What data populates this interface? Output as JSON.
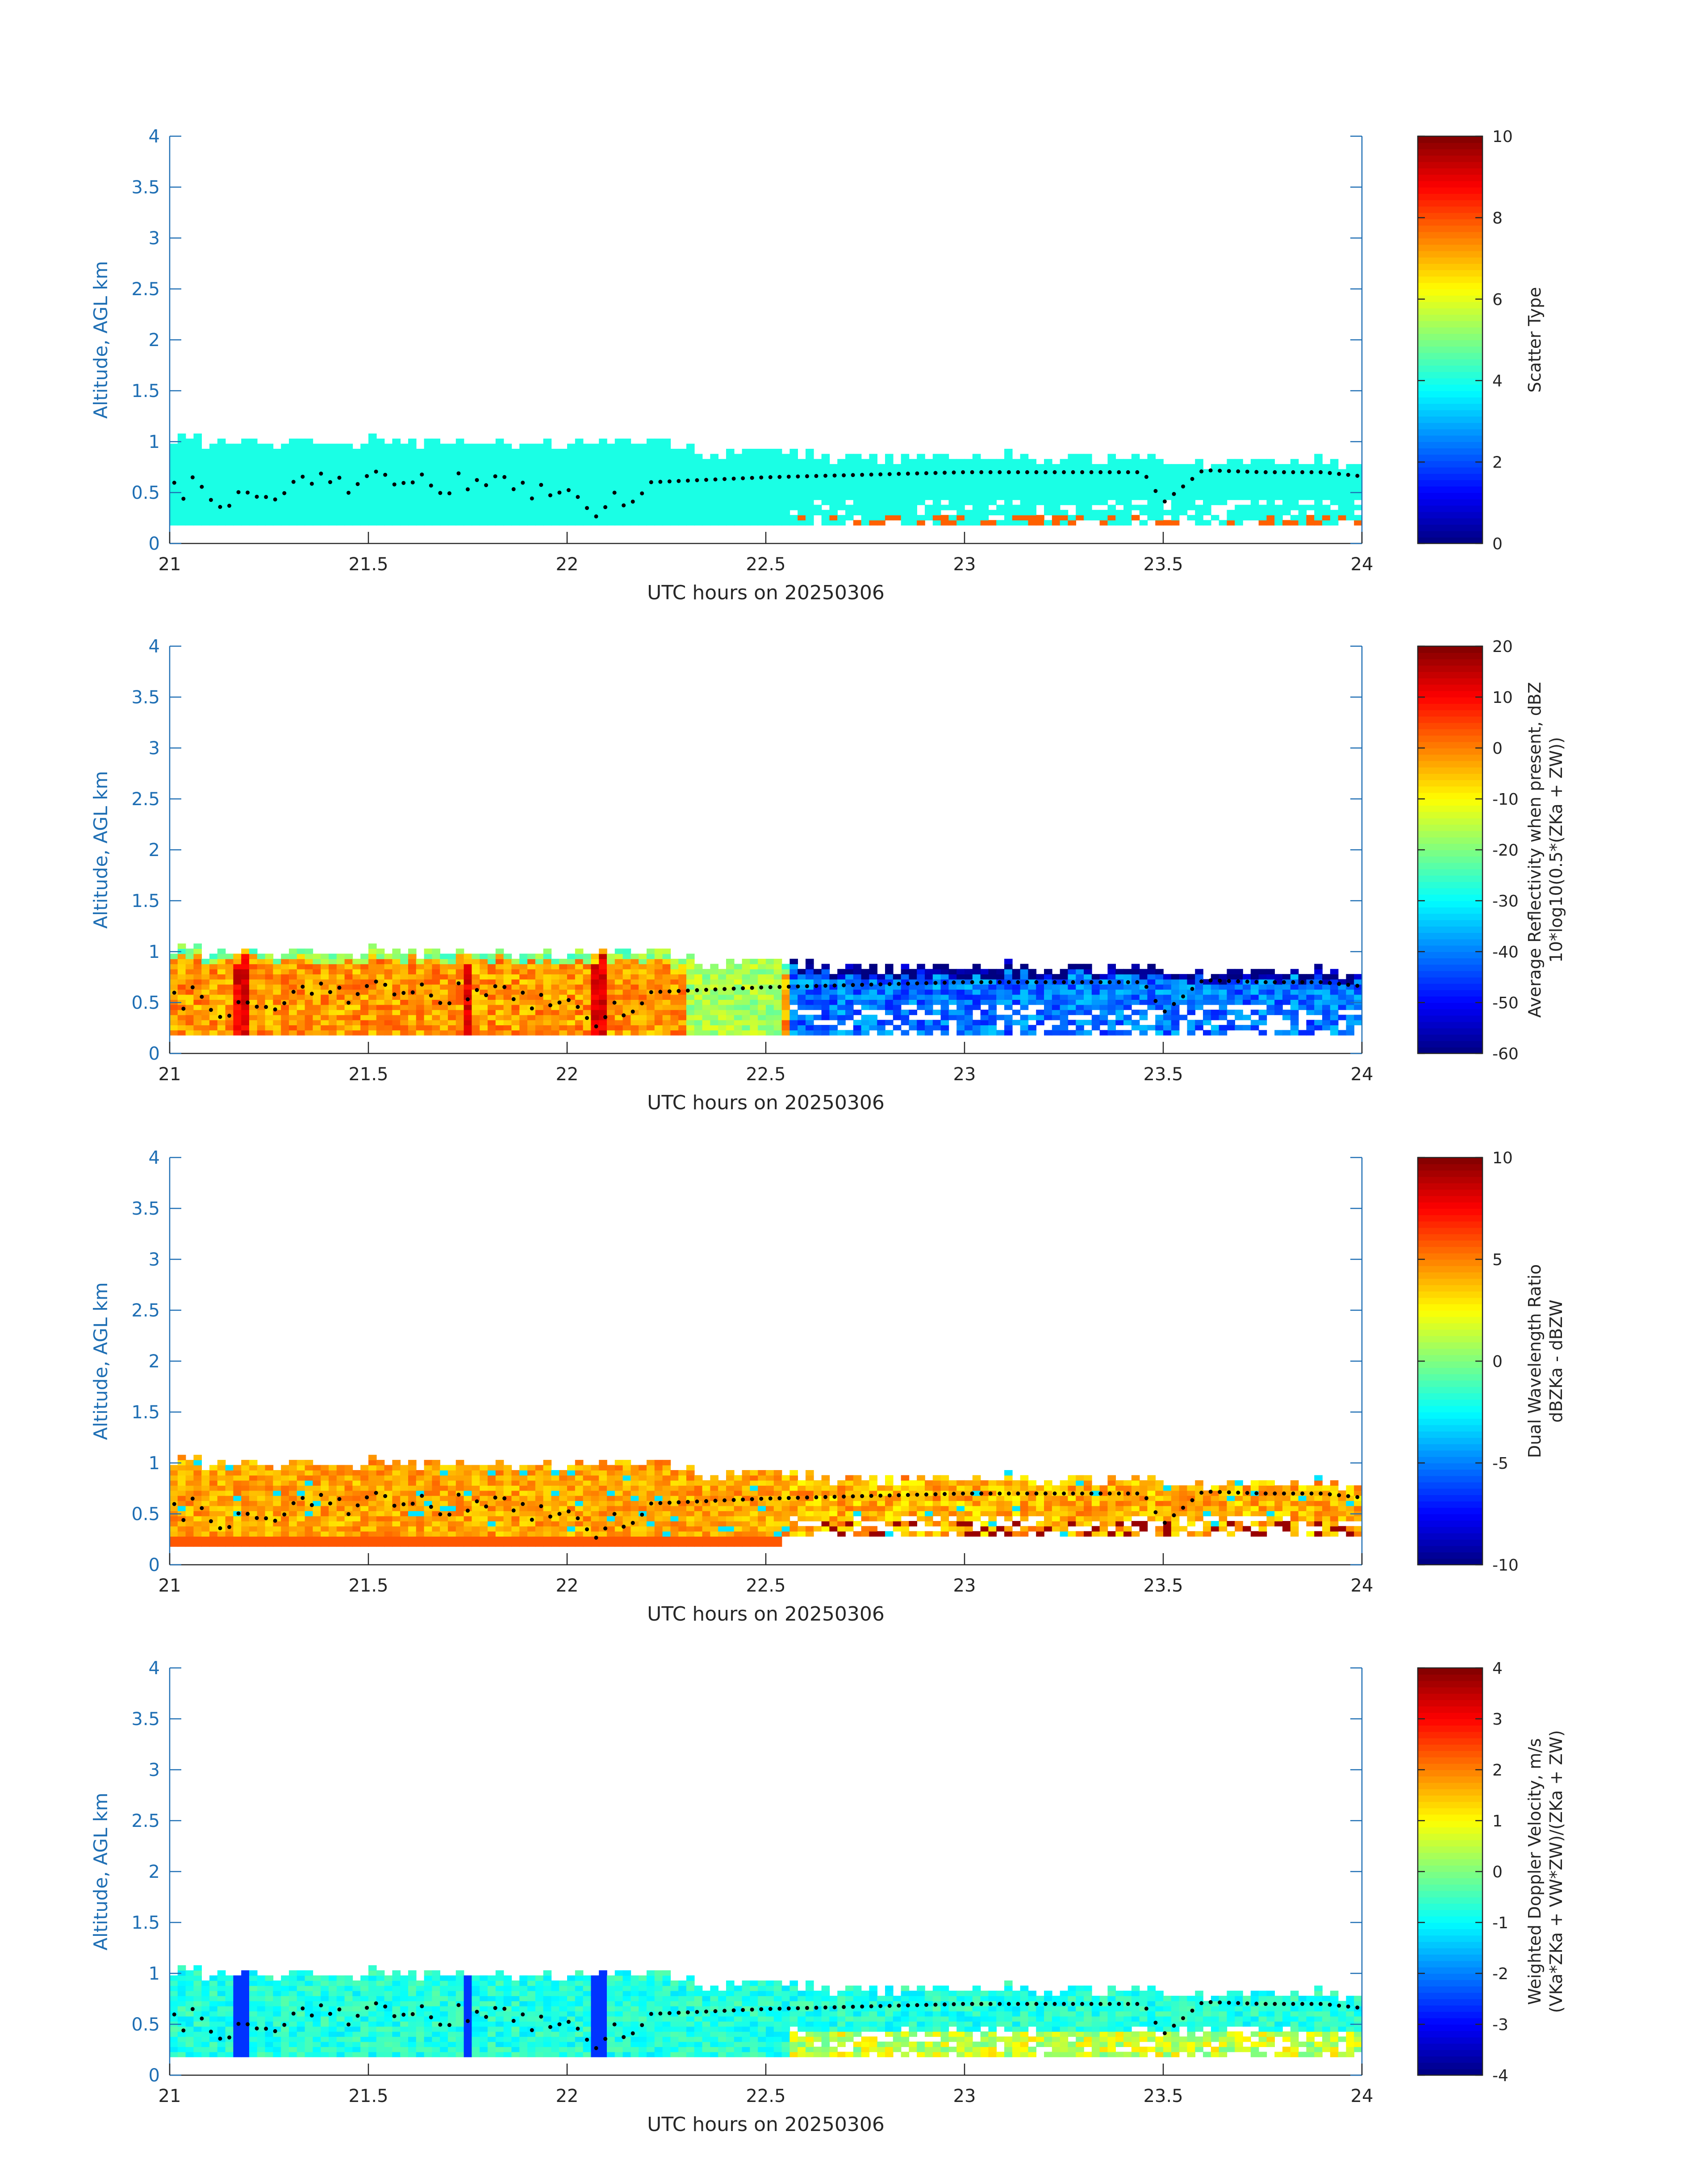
{
  "figure": {
    "date_label": "UTC hours on 20250306"
  },
  "chart_data": [
    {
      "type": "heatmap",
      "xlabel": "UTC hours on 20250306",
      "ylabel": "Altitude, AGL km",
      "xlim": [
        21,
        24
      ],
      "ylim": [
        0,
        4
      ],
      "xticks": [
        "21",
        "21.5",
        "22",
        "22.5",
        "23",
        "23.5",
        "24"
      ],
      "yticks": [
        "0",
        "0.5",
        "1",
        "1.5",
        "2",
        "2.5",
        "3",
        "3.5",
        "4"
      ],
      "colorbar": {
        "label": "Scatter Type",
        "sublabel": "",
        "min": 0,
        "max": 10,
        "ticks": [
          "0",
          "2",
          "4",
          "6",
          "8",
          "10"
        ]
      },
      "field": "scatter",
      "colormap": "jet"
    },
    {
      "type": "heatmap",
      "xlabel": "UTC hours on 20250306",
      "ylabel": "Altitude, AGL km",
      "xlim": [
        21,
        24
      ],
      "ylim": [
        0,
        4
      ],
      "xticks": [
        "21",
        "21.5",
        "22",
        "22.5",
        "23",
        "23.5",
        "24"
      ],
      "yticks": [
        "0",
        "0.5",
        "1",
        "1.5",
        "2",
        "2.5",
        "3",
        "3.5",
        "4"
      ],
      "colorbar": {
        "label": "Average Reflectivity when present, dBZ",
        "sublabel": "10*log10(0.5*(ZKa + ZW))",
        "min": -60,
        "max": 20,
        "ticks": [
          "-60",
          "-50",
          "-40",
          "-30",
          "-20",
          "-10",
          "0",
          "10",
          "20"
        ]
      },
      "field": "reflectivity",
      "colormap": "jet"
    },
    {
      "type": "heatmap",
      "xlabel": "UTC hours on 20250306",
      "ylabel": "Altitude, AGL km",
      "xlim": [
        21,
        24
      ],
      "ylim": [
        0,
        4
      ],
      "xticks": [
        "21",
        "21.5",
        "22",
        "22.5",
        "23",
        "23.5",
        "24"
      ],
      "yticks": [
        "0",
        "0.5",
        "1",
        "1.5",
        "2",
        "2.5",
        "3",
        "3.5",
        "4"
      ],
      "colorbar": {
        "label": "Dual Wavelength Ratio",
        "sublabel": "dBZKa - dBZW",
        "min": -10,
        "max": 10,
        "ticks": [
          "-10",
          "-5",
          "0",
          "5",
          "10"
        ]
      },
      "field": "dwr",
      "colormap": "jet"
    },
    {
      "type": "heatmap",
      "xlabel": "UTC hours on 20250306",
      "ylabel": "Altitude, AGL km",
      "xlim": [
        21,
        24
      ],
      "ylim": [
        0,
        4
      ],
      "xticks": [
        "21",
        "21.5",
        "22",
        "22.5",
        "23",
        "23.5",
        "24"
      ],
      "yticks": [
        "0",
        "0.5",
        "1",
        "1.5",
        "2",
        "2.5",
        "3",
        "3.5",
        "4"
      ],
      "colorbar": {
        "label": "Weighted Doppler Velocity, m/s",
        "sublabel": "(VKa*ZKa + VW*ZW)/(ZKa + ZW)",
        "min": -4,
        "max": 4,
        "ticks": [
          "-4",
          "-3",
          "-2",
          "-1",
          "0",
          "1",
          "2",
          "3",
          "4"
        ]
      },
      "field": "velocity",
      "colormap": "jet"
    }
  ],
  "overlay": {
    "name": "cloud-base marker",
    "times_utc": [
      21.03,
      21.18,
      21.33,
      21.5,
      21.6,
      21.75,
      21.85,
      22.0,
      22.1,
      22.2,
      22.5,
      22.8,
      23.0,
      23.2,
      23.45,
      23.5,
      23.6,
      23.75,
      23.9,
      24.0
    ],
    "altitude_km": [
      0.55,
      0.42,
      0.55,
      0.6,
      0.62,
      0.56,
      0.55,
      0.45,
      0.35,
      0.6,
      0.65,
      0.68,
      0.7,
      0.7,
      0.7,
      0.4,
      0.72,
      0.7,
      0.7,
      0.66
    ]
  }
}
